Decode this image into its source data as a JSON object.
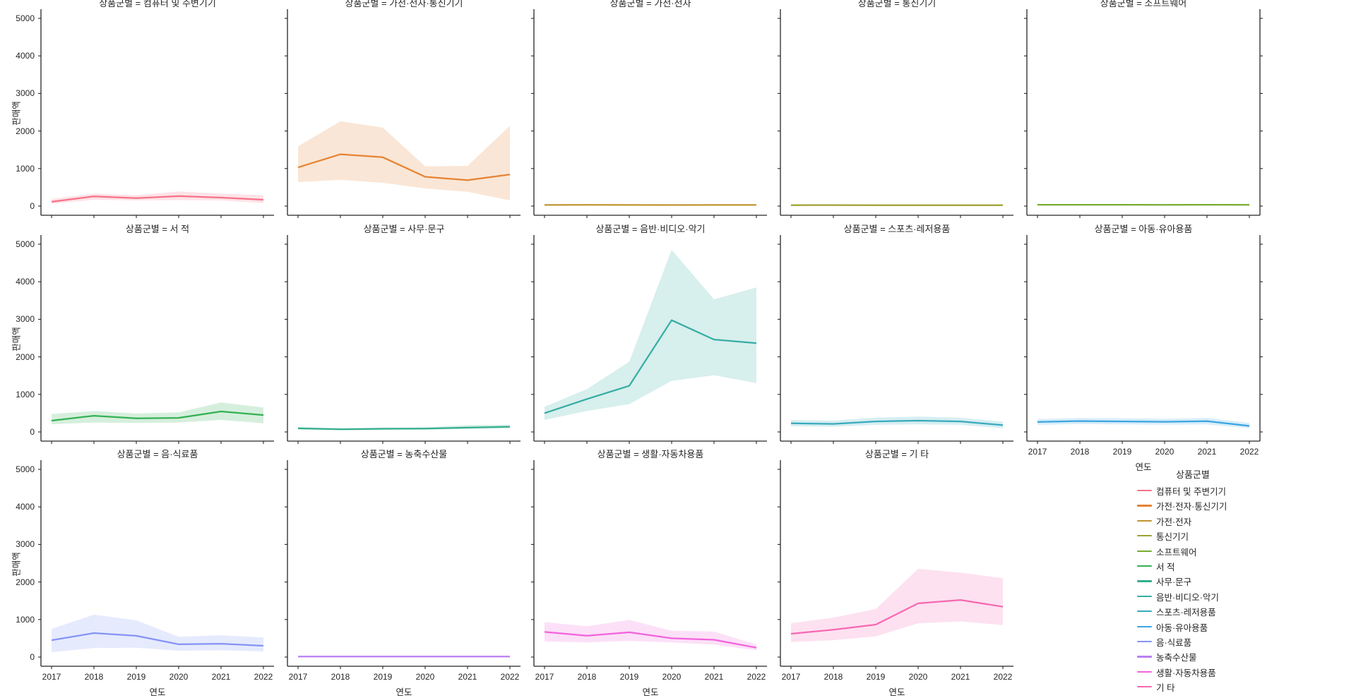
{
  "figure": {
    "background": "#ffffff",
    "spine_color": "#262626",
    "text_color": "#262626",
    "band_opacity": 0.2
  },
  "chart_data": {
    "type": "line",
    "x": [
      2017,
      2018,
      2019,
      2020,
      2021,
      2022
    ],
    "xlabel": "연도",
    "ylabel": "판매액",
    "ylim": [
      0,
      5000
    ],
    "yticks": [
      0,
      1000,
      2000,
      3000,
      4000,
      5000
    ],
    "grid": false,
    "facet_title_prefix": "상품군별 = ",
    "legend_position": "lower right",
    "series": [
      {
        "name": "컴퓨터 및 주변기기",
        "color": "#f77189",
        "mean": [
          115,
          260,
          210,
          265,
          225,
          170
        ],
        "low": [
          60,
          170,
          150,
          160,
          150,
          80
        ],
        "high": [
          190,
          335,
          290,
          390,
          330,
          290
        ]
      },
      {
        "name": "가전·전자·통신기기",
        "color": "#e68332",
        "mean": [
          1030,
          1380,
          1300,
          780,
          690,
          840
        ],
        "low": [
          640,
          700,
          620,
          470,
          380,
          150
        ],
        "high": [
          1590,
          2260,
          2090,
          1060,
          1070,
          2140
        ]
      },
      {
        "name": "가전·전자",
        "color": "#c09432",
        "mean": [
          30,
          32,
          30,
          28,
          30,
          30
        ],
        "low": [
          18,
          20,
          18,
          17,
          18,
          18
        ],
        "high": [
          45,
          48,
          45,
          42,
          45,
          45
        ]
      },
      {
        "name": "통신기기",
        "color": "#9da131",
        "mean": [
          25,
          26,
          25,
          24,
          25,
          25
        ],
        "low": [
          15,
          16,
          15,
          14,
          15,
          15
        ],
        "high": [
          38,
          40,
          38,
          36,
          38,
          38
        ]
      },
      {
        "name": "소프트웨어",
        "color": "#77ab31",
        "mean": [
          35,
          36,
          35,
          34,
          35,
          33
        ],
        "low": [
          22,
          23,
          22,
          21,
          22,
          20
        ],
        "high": [
          50,
          52,
          50,
          48,
          50,
          48
        ]
      },
      {
        "name": "서 적",
        "color": "#34b153",
        "mean": [
          300,
          430,
          360,
          375,
          545,
          450
        ],
        "low": [
          205,
          250,
          240,
          250,
          320,
          230
        ],
        "high": [
          480,
          555,
          495,
          520,
          785,
          650
        ]
      },
      {
        "name": "사무·문구",
        "color": "#34ae8d",
        "mean": [
          95,
          70,
          85,
          90,
          115,
          140
        ],
        "low": [
          60,
          50,
          55,
          60,
          80,
          90
        ],
        "high": [
          130,
          100,
          115,
          120,
          185,
          190
        ]
      },
      {
        "name": "음반·비디오·악기",
        "color": "#36ada4",
        "mean": [
          500,
          875,
          1230,
          2975,
          2460,
          2365
        ],
        "low": [
          320,
          560,
          740,
          1360,
          1510,
          1300
        ],
        "high": [
          670,
          1140,
          1870,
          4850,
          3530,
          3850
        ]
      },
      {
        "name": "스포츠·레저용품",
        "color": "#38aabc",
        "mean": [
          230,
          215,
          280,
          300,
          280,
          180
        ],
        "low": [
          150,
          140,
          190,
          200,
          190,
          100
        ],
        "high": [
          320,
          300,
          380,
          410,
          380,
          270
        ]
      },
      {
        "name": "아동·유아용품",
        "color": "#3aa5e1",
        "mean": [
          265,
          290,
          280,
          270,
          285,
          160
        ],
        "low": [
          190,
          210,
          200,
          195,
          200,
          100
        ],
        "high": [
          340,
          370,
          360,
          350,
          370,
          240
        ]
      },
      {
        "name": "음·식료품",
        "color": "#8494f4",
        "mean": [
          450,
          640,
          565,
          340,
          355,
          300
        ],
        "low": [
          130,
          240,
          250,
          170,
          180,
          150
        ],
        "high": [
          750,
          1130,
          980,
          540,
          580,
          520
        ]
      },
      {
        "name": "농축수산물",
        "color": "#bb80f4",
        "mean": [
          15,
          15,
          14,
          15,
          15,
          14
        ],
        "low": [
          8,
          8,
          8,
          8,
          8,
          8
        ],
        "high": [
          25,
          25,
          24,
          25,
          25,
          24
        ]
      },
      {
        "name": "생활·자동차용품",
        "color": "#f263dd",
        "mean": [
          670,
          570,
          660,
          500,
          460,
          250
        ],
        "low": [
          420,
          390,
          430,
          390,
          330,
          180
        ],
        "high": [
          930,
          820,
          990,
          700,
          680,
          330
        ]
      },
      {
        "name": "기 타",
        "color": "#f668b2",
        "mean": [
          620,
          730,
          865,
          1430,
          1520,
          1340
        ],
        "low": [
          400,
          450,
          550,
          900,
          950,
          850
        ],
        "high": [
          900,
          1050,
          1280,
          2350,
          2250,
          2100
        ]
      }
    ]
  },
  "legend": {
    "title": "상품군별"
  }
}
